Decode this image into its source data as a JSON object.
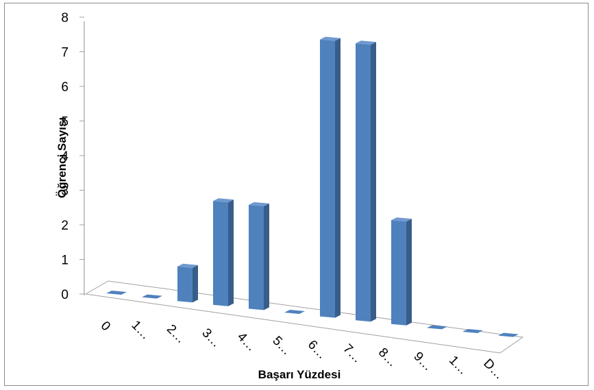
{
  "chart_data": {
    "type": "bar",
    "title": "",
    "xlabel": "Başarı Yüzdesi",
    "ylabel": "Öğrenci Sayısı",
    "categories": [
      "0",
      "1…",
      "2…",
      "3…",
      "4…",
      "5…",
      "6…",
      "7…",
      "8…",
      "9…",
      "1…",
      "D…"
    ],
    "values": [
      0,
      0,
      1,
      3,
      3,
      0,
      8,
      8,
      3,
      0,
      0,
      0
    ],
    "yticks": [
      "0",
      "1",
      "2",
      "3",
      "4",
      "5",
      "6",
      "7",
      "8"
    ],
    "ylim": [
      0,
      8
    ],
    "grid": false,
    "legend": "none",
    "colors": {
      "bar_front": "#4f81bd",
      "bar_side": "#385d8a",
      "bar_top": "#6f99cf",
      "axis": "#a0a0a0"
    }
  }
}
